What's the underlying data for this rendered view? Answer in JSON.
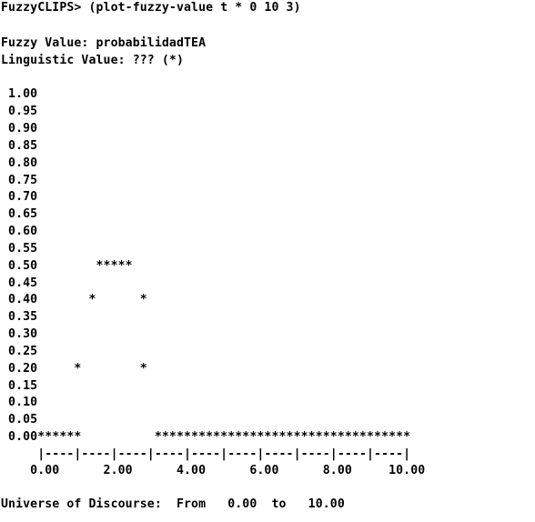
{
  "console": {
    "prompt_line": "FuzzyCLIPS> (plot-fuzzy-value t * 0 10 3)",
    "fuzzy_value_line": "Fuzzy Value: probabilidadTEA",
    "linguistic_value_line": "Linguistic Value: ??? (*)",
    "plot_rows": [
      " 1.00",
      " 0.95",
      " 0.90",
      " 0.85",
      " 0.80",
      " 0.75",
      " 0.70",
      " 0.65",
      " 0.60",
      " 0.55",
      " 0.50        *****",
      " 0.45",
      " 0.40       *      *",
      " 0.35",
      " 0.30",
      " 0.25",
      " 0.20     *        *",
      " 0.15",
      " 0.10",
      " 0.05",
      " 0.00******          ***********************************"
    ],
    "axis_line": "     |----|----|----|----|----|----|----|----|----|----|",
    "axis_labels_line": "    0.00      2.00      4.00      6.00      8.00     10.00",
    "universe_line": "Universe of Discourse:  From   0.00  to   10.00"
  }
}
